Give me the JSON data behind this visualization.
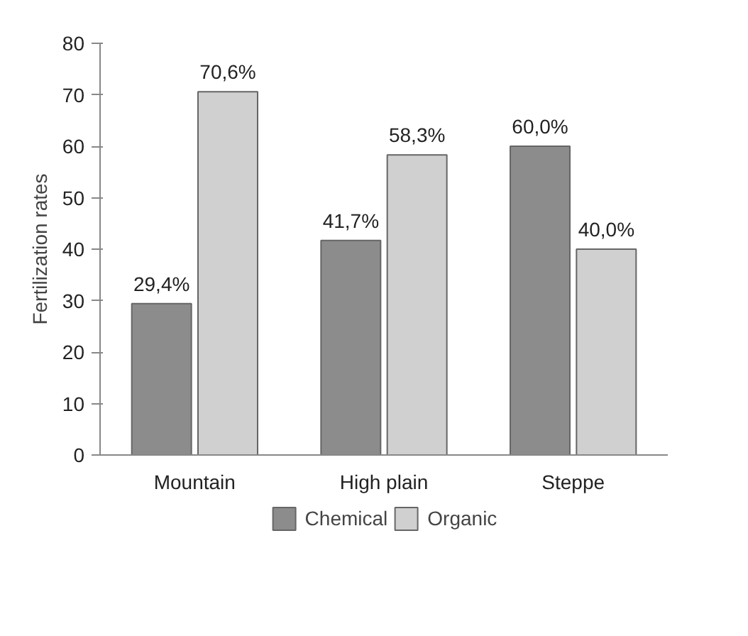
{
  "chart_data": {
    "type": "bar",
    "ylabel": "Fertilization rates",
    "categories": [
      "Mountain",
      "High plain",
      "Steppe"
    ],
    "series": [
      {
        "name": "Chemical",
        "color": "#8c8c8c",
        "values": [
          29.4,
          41.7,
          60.0
        ],
        "value_labels": [
          "29,4%",
          "41,7%",
          "60,0%"
        ]
      },
      {
        "name": "Organic",
        "color": "#d0d0d0",
        "values": [
          70.6,
          58.3,
          40.0
        ],
        "value_labels": [
          "70,6%",
          "58,3%",
          "40,0%"
        ]
      }
    ],
    "ylim": [
      0,
      80
    ],
    "yticks": [
      0,
      10,
      20,
      30,
      40,
      50,
      60,
      70,
      80
    ],
    "grid": false,
    "legend": "bottom"
  }
}
